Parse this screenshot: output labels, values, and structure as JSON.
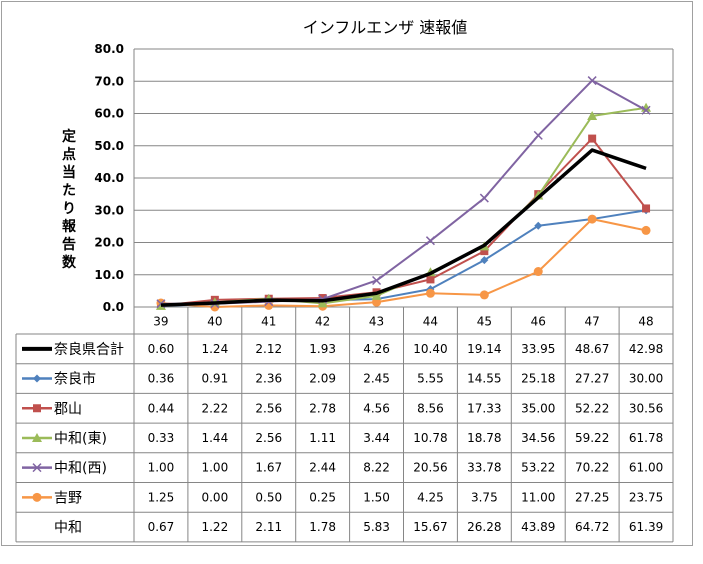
{
  "chart_data": {
    "type": "line",
    "title": "インフルエンザ 速報値",
    "ylabel": "定点当たり報告数",
    "xlabel": "",
    "ylim": [
      0,
      80
    ],
    "yticks": [
      "0.0",
      "10.0",
      "20.0",
      "30.0",
      "40.0",
      "50.0",
      "60.0",
      "70.0",
      "80.0"
    ],
    "categories": [
      "39",
      "40",
      "41",
      "42",
      "43",
      "44",
      "45",
      "46",
      "47",
      "48"
    ],
    "grid": true,
    "legend": "data-table",
    "series": [
      {
        "name": "奈良県合計",
        "color": "#000000",
        "marker": "none",
        "values": [
          0.6,
          1.24,
          2.12,
          1.93,
          4.26,
          10.4,
          19.14,
          33.95,
          48.67,
          42.98
        ],
        "labels": [
          "0.60",
          "1.24",
          "2.12",
          "1.93",
          "4.26",
          "10.40",
          "19.14",
          "33.95",
          "48.67",
          "42.98"
        ]
      },
      {
        "name": "奈良市",
        "color": "#4f81bd",
        "marker": "diamond",
        "values": [
          0.36,
          0.91,
          2.36,
          2.09,
          2.45,
          5.55,
          14.55,
          25.18,
          27.27,
          30.0
        ],
        "labels": [
          "0.36",
          "0.91",
          "2.36",
          "2.09",
          "2.45",
          "5.55",
          "14.55",
          "25.18",
          "27.27",
          "30.00"
        ]
      },
      {
        "name": "郡山",
        "color": "#c0504d",
        "marker": "square",
        "values": [
          0.44,
          2.22,
          2.56,
          2.78,
          4.56,
          8.56,
          17.33,
          35.0,
          52.22,
          30.56
        ],
        "labels": [
          "0.44",
          "2.22",
          "2.56",
          "2.78",
          "4.56",
          "8.56",
          "17.33",
          "35.00",
          "52.22",
          "30.56"
        ]
      },
      {
        "name": "中和(東)",
        "color": "#9bbb59",
        "marker": "triangle",
        "values": [
          0.33,
          1.44,
          2.56,
          1.11,
          3.44,
          10.78,
          18.78,
          34.56,
          59.22,
          61.78
        ],
        "labels": [
          "0.33",
          "1.44",
          "2.56",
          "1.11",
          "3.44",
          "10.78",
          "18.78",
          "34.56",
          "59.22",
          "61.78"
        ]
      },
      {
        "name": "中和(西)",
        "color": "#8064a2",
        "marker": "x",
        "values": [
          1.0,
          1.0,
          1.67,
          2.44,
          8.22,
          20.56,
          33.78,
          53.22,
          70.22,
          61.0
        ],
        "labels": [
          "1.00",
          "1.00",
          "1.67",
          "2.44",
          "8.22",
          "20.56",
          "33.78",
          "53.22",
          "70.22",
          "61.00"
        ]
      },
      {
        "name": "吉野",
        "color": "#f79646",
        "marker": "circle",
        "values": [
          1.25,
          0.0,
          0.5,
          0.25,
          1.5,
          4.25,
          3.75,
          11.0,
          27.25,
          23.75
        ],
        "labels": [
          "1.25",
          "0.00",
          "0.50",
          "0.25",
          "1.50",
          "4.25",
          "3.75",
          "11.00",
          "27.25",
          "23.75"
        ]
      },
      {
        "name": "中和",
        "color": "",
        "marker": "none",
        "table_only": true,
        "values": [
          0.67,
          1.22,
          2.11,
          1.78,
          5.83,
          15.67,
          26.28,
          43.89,
          64.72,
          61.39
        ],
        "labels": [
          "0.67",
          "1.22",
          "2.11",
          "1.78",
          "5.83",
          "15.67",
          "26.28",
          "43.89",
          "64.72",
          "61.39"
        ]
      }
    ]
  }
}
